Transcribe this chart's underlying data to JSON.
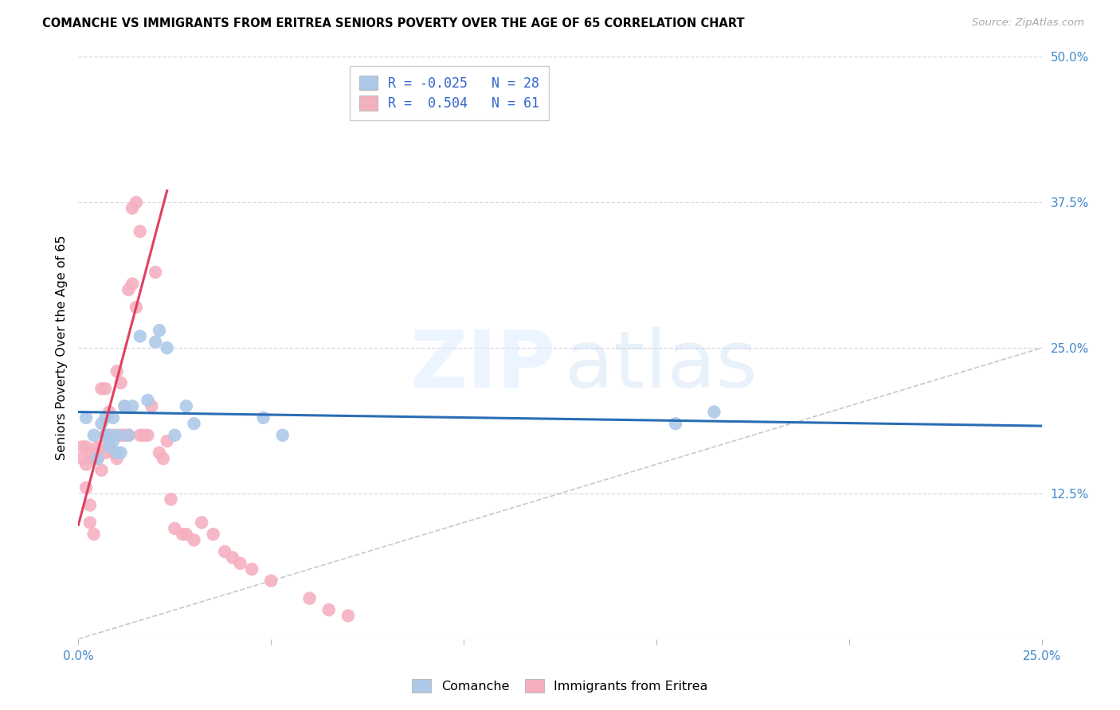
{
  "title": "COMANCHE VS IMMIGRANTS FROM ERITREA SENIORS POVERTY OVER THE AGE OF 65 CORRELATION CHART",
  "source": "Source: ZipAtlas.com",
  "ylabel": "Seniors Poverty Over the Age of 65",
  "xlim": [
    0.0,
    0.25
  ],
  "ylim": [
    0.0,
    0.5
  ],
  "xticks": [
    0.0,
    0.05,
    0.1,
    0.15,
    0.2,
    0.25
  ],
  "yticks": [
    0.0,
    0.125,
    0.25,
    0.375,
    0.5
  ],
  "comanche_color": "#adc9e8",
  "eritrea_color": "#f5b0c0",
  "comanche_line_color": "#2a6db5",
  "eritrea_line_color": "#e04060",
  "diagonal_color": "#c8c8c8",
  "grid_color": "#d8d8e8",
  "comanche_x": [
    0.002,
    0.004,
    0.005,
    0.006,
    0.007,
    0.007,
    0.008,
    0.008,
    0.009,
    0.009,
    0.01,
    0.01,
    0.011,
    0.012,
    0.013,
    0.014,
    0.016,
    0.018,
    0.02,
    0.021,
    0.023,
    0.025,
    0.028,
    0.03,
    0.048,
    0.053,
    0.155,
    0.165
  ],
  "comanche_y": [
    0.19,
    0.175,
    0.155,
    0.185,
    0.175,
    0.19,
    0.165,
    0.175,
    0.19,
    0.17,
    0.175,
    0.16,
    0.16,
    0.2,
    0.175,
    0.2,
    0.26,
    0.205,
    0.255,
    0.265,
    0.25,
    0.175,
    0.2,
    0.185,
    0.19,
    0.175,
    0.185,
    0.195
  ],
  "eritrea_x": [
    0.001,
    0.001,
    0.002,
    0.002,
    0.002,
    0.003,
    0.003,
    0.003,
    0.004,
    0.004,
    0.005,
    0.005,
    0.005,
    0.006,
    0.006,
    0.006,
    0.007,
    0.007,
    0.007,
    0.008,
    0.008,
    0.008,
    0.009,
    0.009,
    0.01,
    0.01,
    0.011,
    0.011,
    0.012,
    0.012,
    0.013,
    0.013,
    0.013,
    0.014,
    0.014,
    0.015,
    0.015,
    0.016,
    0.016,
    0.017,
    0.018,
    0.019,
    0.02,
    0.021,
    0.022,
    0.023,
    0.024,
    0.025,
    0.027,
    0.028,
    0.03,
    0.032,
    0.035,
    0.038,
    0.04,
    0.042,
    0.045,
    0.05,
    0.06,
    0.065,
    0.07
  ],
  "eritrea_y": [
    0.155,
    0.165,
    0.13,
    0.15,
    0.165,
    0.1,
    0.115,
    0.16,
    0.09,
    0.155,
    0.155,
    0.16,
    0.165,
    0.145,
    0.165,
    0.215,
    0.16,
    0.175,
    0.215,
    0.165,
    0.175,
    0.195,
    0.16,
    0.175,
    0.155,
    0.23,
    0.175,
    0.22,
    0.175,
    0.2,
    0.175,
    0.3,
    0.175,
    0.305,
    0.37,
    0.285,
    0.375,
    0.175,
    0.35,
    0.175,
    0.175,
    0.2,
    0.315,
    0.16,
    0.155,
    0.17,
    0.12,
    0.095,
    0.09,
    0.09,
    0.085,
    0.1,
    0.09,
    0.075,
    0.07,
    0.065,
    0.06,
    0.05,
    0.035,
    0.025,
    0.02
  ],
  "comanche_line_x": [
    0.0,
    0.25
  ],
  "comanche_line_y": [
    0.195,
    0.183
  ],
  "eritrea_line_x": [
    0.0,
    0.023
  ],
  "eritrea_line_y": [
    0.098,
    0.385
  ]
}
